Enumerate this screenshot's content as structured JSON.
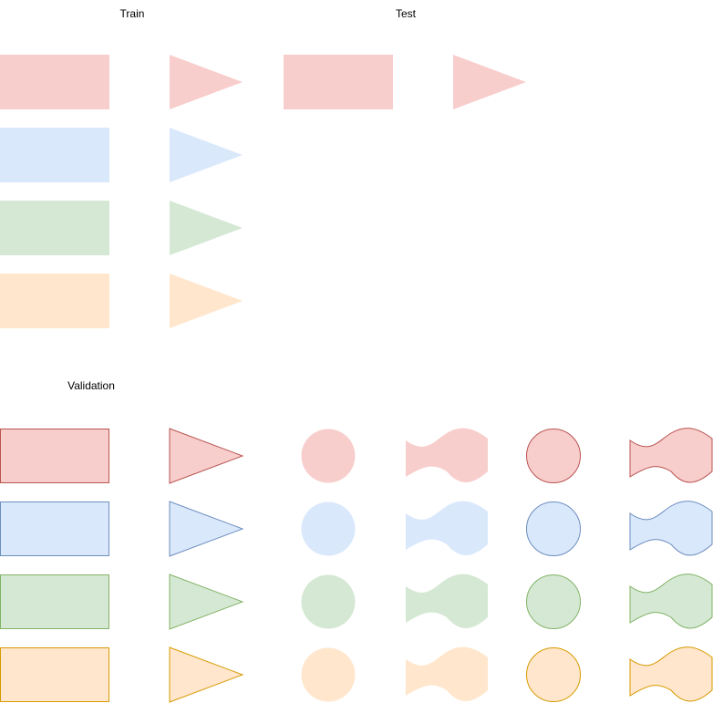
{
  "labels": {
    "train": "Train",
    "test": "Test",
    "validation": "Validation"
  },
  "palette": {
    "red": {
      "fill": "#f8cecc",
      "stroke": "#b85450"
    },
    "blue": {
      "fill": "#dae8fc",
      "stroke": "#6c8ebf"
    },
    "green": {
      "fill": "#d5e8d4",
      "stroke": "#82b366"
    },
    "orange": {
      "fill": "#ffe6cc",
      "stroke": "#d79b00"
    }
  },
  "sections": {
    "train": {
      "colors": [
        "red",
        "blue",
        "green",
        "orange"
      ],
      "shapes": [
        {
          "kind": "rectangle",
          "outlined": false
        },
        {
          "kind": "triangle",
          "outlined": false
        }
      ]
    },
    "test": {
      "colors": [
        "red"
      ],
      "shapes": [
        {
          "kind": "rectangle",
          "outlined": false
        },
        {
          "kind": "triangle",
          "outlined": false
        }
      ]
    },
    "validation": {
      "colors": [
        "red",
        "blue",
        "green",
        "orange"
      ],
      "shapes": [
        {
          "kind": "rectangle",
          "outlined": true
        },
        {
          "kind": "triangle",
          "outlined": true
        },
        {
          "kind": "circle",
          "outlined": false
        },
        {
          "kind": "wave",
          "outlined": false
        },
        {
          "kind": "circle",
          "outlined": true
        },
        {
          "kind": "wave",
          "outlined": true
        }
      ]
    }
  }
}
